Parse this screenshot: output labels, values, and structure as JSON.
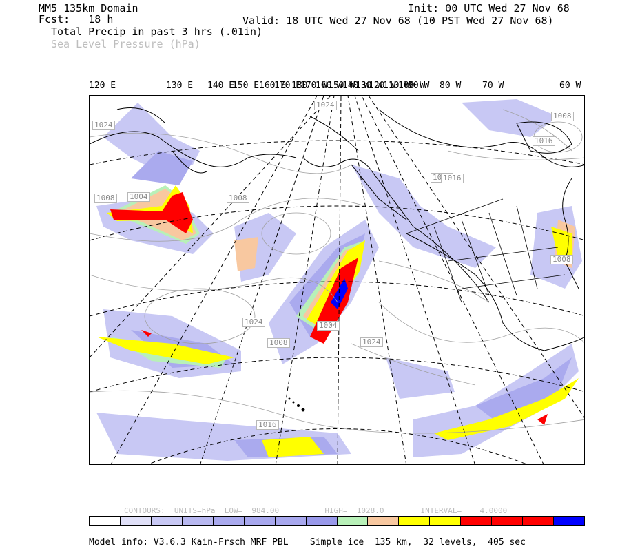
{
  "header": {
    "domain": "MM5 135km Domain",
    "fcst": "Fcst:   18 h",
    "field1": "Total Precip in past 3 hrs (.01in)",
    "field2": "Sea Level Pressure (hPa)",
    "init": "Init: 00 UTC Wed 27 Nov 68",
    "valid": "Valid: 18 UTC Wed 27 Nov 68 (10 PST Wed 27 Nov 68)"
  },
  "longitude_labels": [
    "120 E",
    "130 E",
    "140 E",
    "150 E",
    "160 E",
    "170 E",
    "180",
    "170 W",
    "160 W",
    "150 W",
    "140 W",
    "130 W",
    "120 W",
    "110 W",
    "100 W",
    "90 W",
    "80 W",
    "70 W",
    "60 W"
  ],
  "pressure_labels": [
    "1024",
    "1024",
    "1016",
    "1008",
    "1008",
    "1004",
    "1016",
    "1008",
    "1016",
    "1024",
    "1008",
    "1024",
    "1016",
    "1008",
    "1004"
  ],
  "contours_text": "CONTOURS:  UNITS=hPa  LOW=  984.00          HIGH=  1028.0        INTERVAL=    4.0000",
  "colorbar": {
    "colors": [
      "#ffffff",
      "#e0e0f8",
      "#c8c8f4",
      "#b8b8f0",
      "#aaaaee",
      "#a8a8ee",
      "#a8a8ee",
      "#9999ea",
      "#b8f0b8",
      "#f8c8a0",
      "#ffff00",
      "#ffff00",
      "#ff0000",
      "#ff0000",
      "#ff0000",
      "#0000ff"
    ]
  },
  "footer": "Model info: V3.6.3 Kain-Frsch MRF PBL    Simple ice  135 km,  32 levels,  405 sec",
  "colors": {
    "light": "#c8c8f4",
    "medium": "#a8a8ee",
    "green": "#b8f0b8",
    "orange": "#f8c8a0",
    "yellow": "#ffff00",
    "red": "#ff0000",
    "blue": "#0000ff"
  }
}
